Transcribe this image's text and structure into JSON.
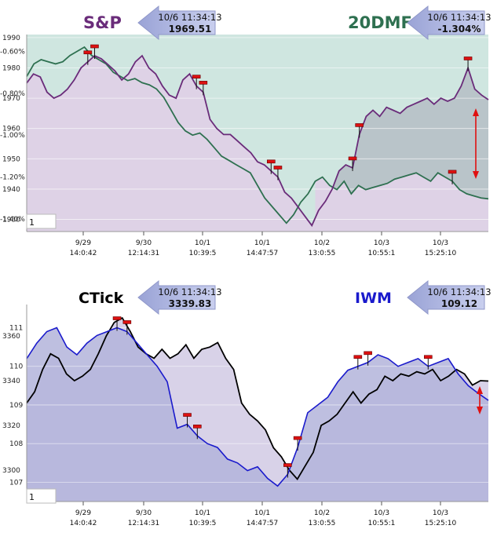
{
  "chart_data": [
    {
      "type": "line",
      "panel": "top",
      "background_colors": {
        "plot_fill": "#cfe6e0",
        "left_fill": "#ded2e6",
        "right_fill": "#b9c4c9"
      },
      "box_label": "1",
      "x_ticks": [
        {
          "date": "9/29",
          "time": "14:0:42"
        },
        {
          "date": "9/30",
          "time": "12:14:31"
        },
        {
          "date": "10/1",
          "time": "10:39:5"
        },
        {
          "date": "10/1",
          "time": "14:47:57"
        },
        {
          "date": "10/2",
          "time": "13:0:55"
        },
        {
          "date": "10/3",
          "time": "10:55:1"
        },
        {
          "date": "10/3",
          "time": "15:25:10"
        }
      ],
      "left_axis": {
        "ticks": [
          "1990",
          "1980",
          "1970",
          "1960",
          "1950",
          "1940",
          "1930"
        ],
        "values": [
          1990,
          1980,
          1970,
          1960,
          1950,
          1940,
          1930
        ],
        "ylim": [
          1926,
          1991
        ]
      },
      "right_axis": {
        "ticks": [
          "-0.60%",
          "-0.80%",
          "-1.00%",
          "-1.20%",
          "-1.40%"
        ],
        "values": [
          -0.6,
          -0.8,
          -1.0,
          -1.2,
          -1.4
        ],
        "note": "ticks printed on the left edge over the plot"
      },
      "series": [
        {
          "name": "S&P",
          "color": "#6a2c7a",
          "callout_time": "10/6 11:34:13",
          "callout_value": "1969.51",
          "values": [
            1975,
            1978,
            1977,
            1972,
            1970,
            1971,
            1973,
            1976,
            1980,
            1982,
            1984,
            1983,
            1981,
            1979,
            1976,
            1978,
            1982,
            1984,
            1980,
            1978,
            1974,
            1971,
            1970,
            1976,
            1978,
            1974,
            1972,
            1963,
            1960,
            1958,
            1958,
            1956,
            1954,
            1952,
            1949,
            1948,
            1946,
            1944,
            1939,
            1937,
            1934,
            1931,
            1928,
            1933,
            1936,
            1940,
            1946,
            1948,
            1947,
            1958,
            1964,
            1966,
            1964,
            1967,
            1966,
            1965,
            1967,
            1968,
            1969,
            1970,
            1968,
            1970,
            1969,
            1970,
            1974,
            1980,
            1973,
            1971,
            1969.51
          ]
        },
        {
          "name": "20DMF",
          "color": "#2e7050",
          "callout_time": "10/6 11:34:13",
          "callout_value": "-1.304%",
          "values": [
            -0.72,
            -0.66,
            -0.64,
            -0.65,
            -0.66,
            -0.65,
            -0.62,
            -0.6,
            -0.58,
            -0.62,
            -0.64,
            -0.66,
            -0.7,
            -0.72,
            -0.74,
            -0.73,
            -0.75,
            -0.76,
            -0.78,
            -0.82,
            -0.88,
            -0.94,
            -0.98,
            -1.0,
            -0.99,
            -1.02,
            -1.06,
            -1.1,
            -1.12,
            -1.14,
            -1.16,
            -1.18,
            -1.24,
            -1.3,
            -1.34,
            -1.38,
            -1.42,
            -1.38,
            -1.32,
            -1.28,
            -1.22,
            -1.2,
            -1.24,
            -1.26,
            -1.22,
            -1.28,
            -1.24,
            -1.26,
            -1.25,
            -1.24,
            -1.23,
            -1.21,
            -1.2,
            -1.19,
            -1.18,
            -1.2,
            -1.22,
            -1.18,
            -1.2,
            -1.22,
            -1.26,
            -1.28,
            -1.29,
            -1.3,
            -1.304
          ]
        }
      ],
      "markers": [
        {
          "series": 0,
          "index": 9
        },
        {
          "series": 0,
          "index": 10
        },
        {
          "series": 0,
          "index": 25
        },
        {
          "series": 0,
          "index": 26
        },
        {
          "series": 0,
          "index": 36
        },
        {
          "series": 0,
          "index": 37
        },
        {
          "series": 0,
          "index": 48
        },
        {
          "series": 0,
          "index": 49
        },
        {
          "series": 0,
          "index": 65
        },
        {
          "series": 1,
          "index": 59
        }
      ]
    },
    {
      "type": "line",
      "panel": "bottom",
      "background_colors": {
        "plot_fill": "#b3b4da",
        "left_fill": "#d8d2e8"
      },
      "box_label": "1",
      "x_ticks": [
        {
          "date": "9/29",
          "time": "14:0:42"
        },
        {
          "date": "9/30",
          "time": "12:14:31"
        },
        {
          "date": "10/1",
          "time": "10:39:5"
        },
        {
          "date": "10/1",
          "time": "14:47:57"
        },
        {
          "date": "10/2",
          "time": "13:0:55"
        },
        {
          "date": "10/3",
          "time": "10:55:1"
        },
        {
          "date": "10/3",
          "time": "15:25:10"
        }
      ],
      "left_axis": {
        "ticks": [
          "3360",
          "3340",
          "3320",
          "3300"
        ],
        "values": [
          3360,
          3340,
          3320,
          3300
        ],
        "ylim": [
          3286,
          3374
        ]
      },
      "right_axis": {
        "ticks": [
          "111",
          "110",
          "109",
          "108",
          "107"
        ],
        "values": [
          111,
          110,
          109,
          108,
          107
        ],
        "ylim": [
          106.5,
          111.6
        ]
      },
      "series": [
        {
          "name": "CTick",
          "color": "#000000",
          "callout_time": "10/6 11:34:13",
          "callout_value": "3339.83",
          "values": [
            3330,
            3335,
            3345,
            3352,
            3350,
            3343,
            3340,
            3342,
            3345,
            3352,
            3360,
            3366,
            3368,
            3362,
            3355,
            3352,
            3350,
            3354,
            3350,
            3352,
            3356,
            3350,
            3354,
            3355,
            3357,
            3350,
            3345,
            3330,
            3325,
            3322,
            3318,
            3310,
            3306,
            3300,
            3296,
            3302,
            3308,
            3320,
            3322,
            3325,
            3330,
            3335,
            3330,
            3334,
            3336,
            3342,
            3340,
            3343,
            3342,
            3344,
            3343,
            3345,
            3340,
            3342,
            3345,
            3343,
            3338,
            3340,
            3339.83
          ]
        },
        {
          "name": "IWM",
          "color": "#1a1acc",
          "callout_time": "10/6 11:34:13",
          "callout_value": "109.12",
          "values": [
            110.2,
            110.6,
            110.9,
            111.0,
            110.5,
            110.3,
            110.6,
            110.8,
            110.9,
            111.0,
            110.9,
            110.6,
            110.3,
            110.0,
            109.6,
            108.4,
            108.5,
            108.2,
            108.0,
            107.9,
            107.6,
            107.5,
            107.3,
            107.4,
            107.1,
            106.9,
            107.2,
            107.9,
            108.8,
            109.0,
            109.2,
            109.6,
            109.9,
            110.0,
            110.1,
            110.3,
            110.2,
            110.0,
            110.1,
            110.2,
            110.0,
            110.1,
            110.2,
            109.8,
            109.5,
            109.3,
            109.12
          ]
        }
      ],
      "markers": [
        {
          "series": 1,
          "index": 9
        },
        {
          "series": 1,
          "index": 10
        },
        {
          "series": 1,
          "index": 16
        },
        {
          "series": 1,
          "index": 17
        },
        {
          "series": 1,
          "index": 26
        },
        {
          "series": 1,
          "index": 27
        },
        {
          "series": 1,
          "index": 33
        },
        {
          "series": 1,
          "index": 34
        },
        {
          "series": 1,
          "index": 40
        }
      ]
    }
  ]
}
